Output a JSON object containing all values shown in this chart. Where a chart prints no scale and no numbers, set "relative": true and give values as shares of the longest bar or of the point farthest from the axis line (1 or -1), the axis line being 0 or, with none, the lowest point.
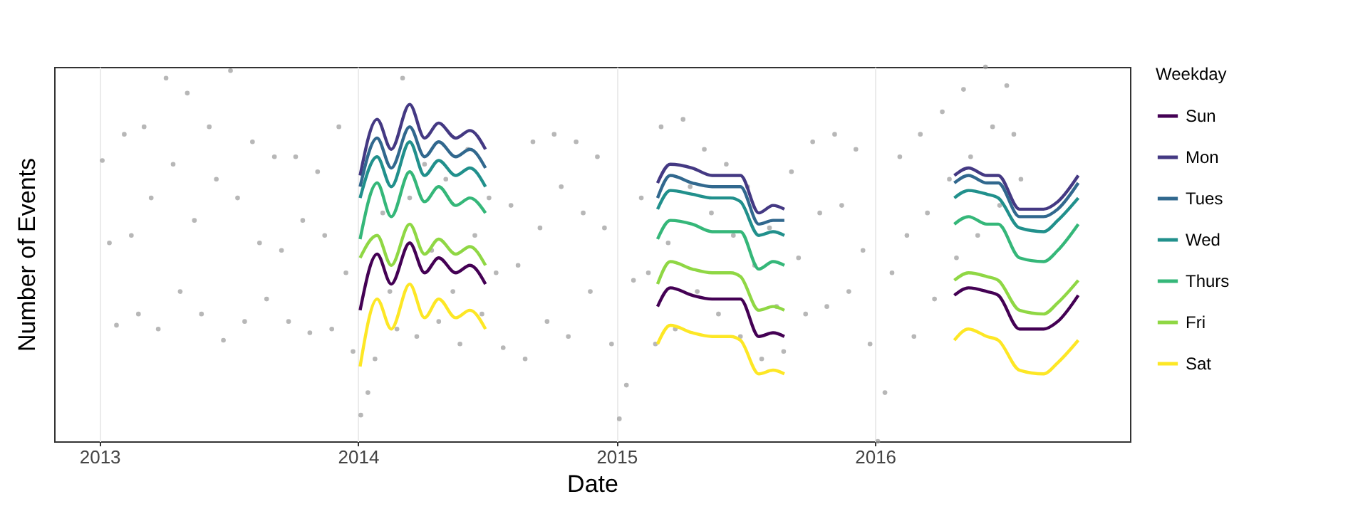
{
  "chart_data": {
    "type": "line",
    "xlabel": "Date",
    "ylabel": "Number of Events",
    "legend_title": "Weekday",
    "legend": "right",
    "grid": "x",
    "relative": true,
    "xlim": [
      "2012-10-29",
      "2016-12-26"
    ],
    "xticks": [
      "2013",
      "2014",
      "2015",
      "2016"
    ],
    "x": [
      "2014-01-04",
      "2014-01-28",
      "2014-02-17",
      "2014-03-15",
      "2014-04-05",
      "2014-04-25",
      "2014-05-19",
      "2014-06-08",
      "2014-06-30",
      "2014-10-01",
      "2015-02-28",
      "2015-03-18",
      "2015-04-18",
      "2015-05-16",
      "2015-06-11",
      "2015-06-25",
      "2015-07-21",
      "2015-08-10",
      "2015-08-26",
      "2015-12-01",
      "2016-04-22",
      "2016-05-12",
      "2016-06-07",
      "2016-06-23",
      "2016-07-23",
      "2016-08-26",
      "2016-09-15",
      "2016-10-14"
    ],
    "series": [
      {
        "type": "scatter",
        "color": "#999999",
        "x": [
          "2013-01-05",
          "2013-01-15",
          "2013-01-25",
          "2013-02-05",
          "2013-02-15",
          "2013-02-25",
          "2013-03-05",
          "2013-03-15",
          "2013-03-25",
          "2013-04-05",
          "2013-04-15",
          "2013-04-25",
          "2013-05-05",
          "2013-05-15",
          "2013-05-25",
          "2013-06-05",
          "2013-06-15",
          "2013-06-25",
          "2013-07-05",
          "2013-07-15",
          "2013-07-25",
          "2013-08-05",
          "2013-08-15",
          "2013-08-25",
          "2013-09-05",
          "2013-09-15",
          "2013-09-25",
          "2013-10-05",
          "2013-10-15",
          "2013-10-25",
          "2013-11-05",
          "2013-11-15",
          "2013-11-25",
          "2013-12-05",
          "2013-12-15",
          "2013-12-25",
          "2014-01-05",
          "2014-01-15",
          "2014-01-25",
          "2014-02-05",
          "2014-02-15",
          "2014-02-25",
          "2014-03-05",
          "2014-03-15",
          "2014-03-25",
          "2014-04-05",
          "2014-04-15",
          "2014-04-25",
          "2014-05-05",
          "2014-05-15",
          "2014-05-25",
          "2014-06-05",
          "2014-06-15",
          "2014-06-25",
          "2014-07-05",
          "2014-07-15",
          "2014-07-25",
          "2014-08-05",
          "2014-08-15",
          "2014-08-25",
          "2014-09-05",
          "2014-09-15",
          "2014-09-25",
          "2014-10-05",
          "2014-10-15",
          "2014-10-25",
          "2014-11-05",
          "2014-11-15",
          "2014-11-25",
          "2014-12-05",
          "2014-12-15",
          "2014-12-25",
          "2015-01-05",
          "2015-01-15",
          "2015-01-25",
          "2015-02-05",
          "2015-02-15",
          "2015-02-25",
          "2015-03-05",
          "2015-03-15",
          "2015-03-25",
          "2015-04-05",
          "2015-04-15",
          "2015-04-25",
          "2015-05-05",
          "2015-05-15",
          "2015-05-25",
          "2015-06-05",
          "2015-06-15",
          "2015-06-25",
          "2015-07-05",
          "2015-07-15",
          "2015-07-25",
          "2015-08-05",
          "2015-08-15",
          "2015-08-25",
          "2015-09-05",
          "2015-09-15",
          "2015-09-25",
          "2015-10-05",
          "2015-10-15",
          "2015-10-25",
          "2015-11-05",
          "2015-11-15",
          "2015-11-25",
          "2015-12-05",
          "2015-12-15",
          "2015-12-25",
          "2016-01-05",
          "2016-01-15",
          "2016-01-25",
          "2016-02-05",
          "2016-02-15",
          "2016-02-25",
          "2016-03-05",
          "2016-03-15",
          "2016-03-25",
          "2016-04-05",
          "2016-04-15",
          "2016-04-25",
          "2016-05-05",
          "2016-05-15",
          "2016-05-25",
          "2016-06-05",
          "2016-06-15",
          "2016-06-25",
          "2016-07-05",
          "2016-07-15",
          "2016-07-25"
        ],
        "values": [
          0.75,
          0.53,
          0.31,
          0.82,
          0.55,
          0.34,
          0.84,
          0.65,
          0.3,
          0.97,
          0.74,
          0.4,
          0.93,
          0.59,
          0.34,
          0.84,
          0.7,
          0.27,
          0.99,
          0.65,
          0.32,
          0.8,
          0.53,
          0.38,
          0.76,
          0.51,
          0.32,
          0.76,
          0.59,
          0.29,
          0.72,
          0.55,
          0.3,
          0.84,
          0.45,
          0.24,
          0.07,
          0.13,
          0.22,
          0.61,
          0.4,
          0.3,
          0.97,
          0.65,
          0.28,
          0.74,
          0.51,
          0.32,
          0.7,
          0.4,
          0.26,
          0.78,
          0.55,
          0.34,
          0.65,
          0.45,
          0.25,
          0.63,
          0.47,
          0.22,
          0.8,
          0.57,
          0.32,
          0.82,
          0.68,
          0.28,
          0.8,
          0.61,
          0.4,
          0.76,
          0.57,
          0.26,
          0.06,
          0.15,
          0.43,
          0.65,
          0.45,
          0.26,
          0.84,
          0.53,
          0.3,
          0.86,
          0.68,
          0.4,
          0.78,
          0.61,
          0.34,
          0.74,
          0.55,
          0.28,
          0.68,
          0.47,
          0.22,
          0.57,
          0.36,
          0.24,
          0.72,
          0.49,
          0.34,
          0.8,
          0.61,
          0.36,
          0.82,
          0.63,
          0.4,
          0.78,
          0.51,
          0.26,
          0,
          0.13,
          0.45,
          0.76,
          0.55,
          0.28,
          0.82,
          0.61,
          0.38,
          0.88,
          0.7,
          0.49,
          0.94,
          0.76,
          0.55,
          1,
          0.84,
          0.63,
          0.95,
          0.82,
          0.7
        ]
      },
      {
        "name": "Sun",
        "color": "#440154",
        "values": [
          0.35,
          0.5,
          0.42,
          0.53,
          0.45,
          0.49,
          0.45,
          0.47,
          0.42,
          null,
          0.36,
          0.41,
          0.39,
          0.38,
          0.38,
          0.38,
          0.28,
          0.29,
          0.28,
          null,
          0.39,
          0.41,
          0.4,
          0.39,
          0.3,
          0.3,
          0.32,
          0.39
        ]
      },
      {
        "name": "Mon",
        "color": "#443983",
        "values": [
          0.71,
          0.86,
          0.78,
          0.9,
          0.81,
          0.85,
          0.81,
          0.83,
          0.78,
          null,
          0.69,
          0.74,
          0.73,
          0.71,
          0.71,
          0.71,
          0.61,
          0.63,
          0.62,
          null,
          0.71,
          0.73,
          0.71,
          0.71,
          0.62,
          0.62,
          0.64,
          0.71
        ]
      },
      {
        "name": "Tues",
        "color": "#31688e",
        "values": [
          0.68,
          0.81,
          0.73,
          0.84,
          0.76,
          0.8,
          0.76,
          0.78,
          0.73,
          null,
          0.65,
          0.71,
          0.69,
          0.68,
          0.68,
          0.68,
          0.58,
          0.59,
          0.59,
          null,
          0.69,
          0.71,
          0.69,
          0.69,
          0.6,
          0.6,
          0.62,
          0.69
        ]
      },
      {
        "name": "Wed",
        "color": "#21908c",
        "values": [
          0.65,
          0.76,
          0.68,
          0.8,
          0.71,
          0.75,
          0.71,
          0.73,
          0.68,
          null,
          0.62,
          0.67,
          0.66,
          0.65,
          0.65,
          0.64,
          0.55,
          0.56,
          0.55,
          null,
          0.65,
          0.67,
          0.66,
          0.65,
          0.57,
          0.56,
          0.59,
          0.65
        ]
      },
      {
        "name": "Thurs",
        "color": "#35b779",
        "values": [
          0.54,
          0.69,
          0.6,
          0.72,
          0.64,
          0.68,
          0.63,
          0.65,
          0.61,
          null,
          0.54,
          0.59,
          0.58,
          0.56,
          0.56,
          0.56,
          0.46,
          0.48,
          0.47,
          null,
          0.58,
          0.6,
          0.58,
          0.58,
          0.49,
          0.48,
          0.51,
          0.58
        ]
      },
      {
        "name": "Fri",
        "color": "#8fd744",
        "values": [
          0.49,
          0.55,
          0.47,
          0.58,
          0.5,
          0.54,
          0.5,
          0.52,
          0.47,
          null,
          0.42,
          0.48,
          0.46,
          0.45,
          0.45,
          0.44,
          0.35,
          0.36,
          0.35,
          null,
          0.43,
          0.45,
          0.44,
          0.43,
          0.35,
          0.34,
          0.37,
          0.43
        ]
      },
      {
        "name": "Sat",
        "color": "#fde725",
        "values": [
          0.2,
          0.38,
          0.3,
          0.42,
          0.33,
          0.38,
          0.33,
          0.35,
          0.3,
          null,
          0.26,
          0.31,
          0.29,
          0.28,
          0.28,
          0.27,
          0.18,
          0.19,
          0.18,
          null,
          0.27,
          0.3,
          0.28,
          0.27,
          0.19,
          0.18,
          0.21,
          0.27
        ]
      }
    ]
  }
}
